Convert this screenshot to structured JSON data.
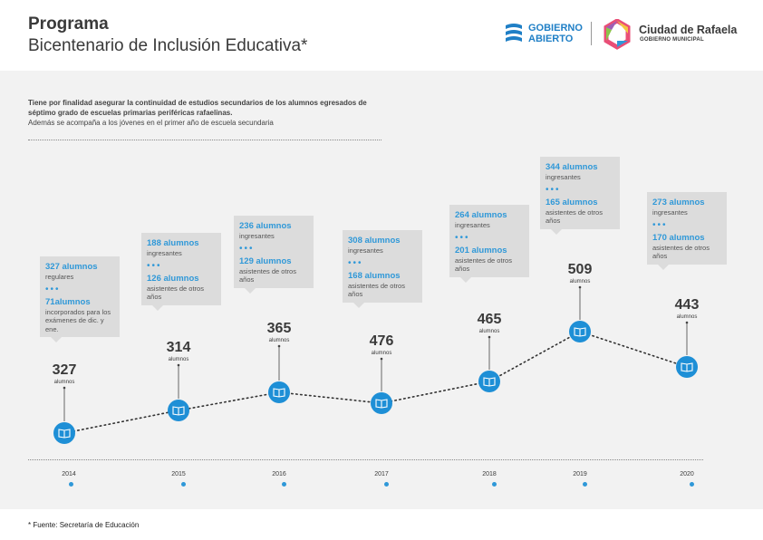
{
  "header": {
    "title": "Programa",
    "subtitle": "Bicentenario de Inclusión Educativa*",
    "logo_left_line1": "GOBIERNO",
    "logo_left_line2": "ABIERTO",
    "logo_right_name": "Ciudad de Rafaela",
    "logo_right_sub": "GOBIERNO MUNICIPAL"
  },
  "intro": {
    "bold_text": "Tiene por finalidad asegurar la continuidad de estudios secundarios de los alumnos egresados de séptimo grado de escuelas primarias periféricas rafaelinas.",
    "normal_text": "Además se acompaña a los jóvenes en el primer año de escuela secundaria"
  },
  "footnote": "* Fuente: Secretaría de Educación",
  "colors": {
    "accent": "#2f98d8",
    "panel": "#f2f2f2",
    "callout": "#dcdcdc",
    "text": "#3a3a3a"
  },
  "chart_data": {
    "type": "line",
    "x": [
      "2014",
      "2015",
      "2016",
      "2017",
      "2018",
      "2019",
      "2020"
    ],
    "values": [
      327,
      314,
      365,
      476,
      465,
      509,
      443
    ],
    "unit": "alumnos",
    "marker_icon": "book-icon",
    "callouts": [
      {
        "line1": "327 alumnos",
        "sub1": "regulares",
        "line2": "71alumnos",
        "sub2": "incorporados para los exámenes de dic. y ene."
      },
      {
        "line1": "188 alumnos",
        "sub1": "ingresantes",
        "line2": "126 alumnos",
        "sub2": "asistentes de otros años"
      },
      {
        "line1": "236 alumnos",
        "sub1": "ingresantes",
        "line2": "129 alumnos",
        "sub2": "asistentes de otros años"
      },
      {
        "line1": "308 alumnos",
        "sub1": "ingresantes",
        "line2": "168 alumnos",
        "sub2": "asistentes de otros años"
      },
      {
        "line1": "264 alumnos",
        "sub1": "ingresantes",
        "line2": "201 alumnos",
        "sub2": "asistentes de otros años"
      },
      {
        "line1": "344 alumnos",
        "sub1": "ingresantes",
        "line2": "165 alumnos",
        "sub2": "asistentes de otros años"
      },
      {
        "line1": "273 alumnos",
        "sub1": "ingresantes",
        "line2": "170 alumnos",
        "sub2": "asistentes de otros años"
      }
    ]
  }
}
